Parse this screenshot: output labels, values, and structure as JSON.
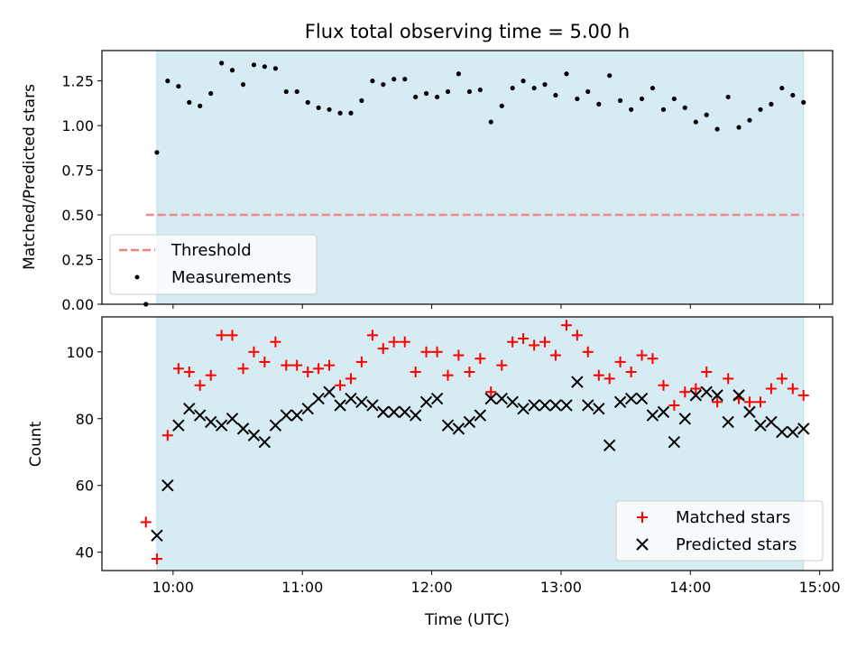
{
  "chart_data": [
    {
      "type": "scatter",
      "title": "Flux total observing time = 5.00 h",
      "xlabel": "",
      "ylabel": "Matched/Predicted stars",
      "ylim": [
        0,
        1.42
      ],
      "x_axis": "time (hours, UTC)",
      "xlim": [
        9.45,
        15.1
      ],
      "yticks": [
        "0.00",
        "0.25",
        "0.50",
        "0.75",
        "1.00",
        "1.25"
      ],
      "shaded_region": [
        9.875,
        14.875
      ],
      "legend": {
        "placement": "lower-left",
        "entries": [
          "Threshold",
          "Measurements"
        ]
      },
      "series": [
        {
          "name": "Threshold",
          "kind": "dashed-line",
          "color": "#f08080",
          "x": [
            9.79,
            14.875
          ],
          "y": [
            0.5,
            0.5
          ]
        },
        {
          "name": "Measurements",
          "kind": "dot",
          "color": "#000000",
          "x": [
            9.79,
            9.875,
            9.958,
            10.042,
            10.125,
            10.208,
            10.292,
            10.375,
            10.458,
            10.542,
            10.625,
            10.708,
            10.792,
            10.875,
            10.958,
            11.042,
            11.125,
            11.208,
            11.292,
            11.375,
            11.458,
            11.542,
            11.625,
            11.708,
            11.792,
            11.875,
            11.958,
            12.042,
            12.125,
            12.208,
            12.292,
            12.375,
            12.458,
            12.542,
            12.625,
            12.708,
            12.792,
            12.875,
            12.958,
            13.042,
            13.125,
            13.208,
            13.292,
            13.375,
            13.458,
            13.542,
            13.625,
            13.708,
            13.792,
            13.875,
            13.958,
            14.042,
            14.125,
            14.208,
            14.292,
            14.375,
            14.458,
            14.542,
            14.625,
            14.708,
            14.792,
            14.875
          ],
          "y": [
            0.0,
            0.85,
            1.25,
            1.22,
            1.13,
            1.11,
            1.18,
            1.35,
            1.31,
            1.23,
            1.34,
            1.33,
            1.32,
            1.19,
            1.19,
            1.13,
            1.1,
            1.09,
            1.07,
            1.07,
            1.14,
            1.25,
            1.23,
            1.26,
            1.26,
            1.16,
            1.18,
            1.16,
            1.19,
            1.29,
            1.19,
            1.2,
            1.02,
            1.11,
            1.21,
            1.25,
            1.21,
            1.23,
            1.17,
            1.29,
            1.15,
            1.19,
            1.12,
            1.28,
            1.14,
            1.09,
            1.15,
            1.21,
            1.09,
            1.15,
            1.1,
            1.02,
            1.06,
            0.98,
            1.16,
            0.99,
            1.03,
            1.09,
            1.12,
            1.21,
            1.17,
            1.13
          ]
        }
      ]
    },
    {
      "type": "scatter",
      "title": "",
      "xlabel": "Time (UTC)",
      "ylabel": "Count",
      "ylim": [
        34.5,
        110.5
      ],
      "xlim": [
        9.45,
        15.1
      ],
      "yticks": [
        "40",
        "60",
        "80",
        "100"
      ],
      "xticks": [
        "10:00",
        "11:00",
        "12:00",
        "13:00",
        "14:00",
        "15:00"
      ],
      "shaded_region": [
        9.875,
        14.875
      ],
      "legend": {
        "placement": "lower-right",
        "entries": [
          "Matched stars",
          "Predicted stars"
        ]
      },
      "series": [
        {
          "name": "Matched stars",
          "kind": "plus",
          "color": "#ff0000",
          "x": [
            9.79,
            9.875,
            9.958,
            10.042,
            10.125,
            10.208,
            10.292,
            10.375,
            10.458,
            10.542,
            10.625,
            10.708,
            10.792,
            10.875,
            10.958,
            11.042,
            11.125,
            11.208,
            11.292,
            11.375,
            11.458,
            11.542,
            11.625,
            11.708,
            11.792,
            11.875,
            11.958,
            12.042,
            12.125,
            12.208,
            12.292,
            12.375,
            12.458,
            12.542,
            12.625,
            12.708,
            12.792,
            12.875,
            12.958,
            13.042,
            13.125,
            13.208,
            13.292,
            13.375,
            13.458,
            13.542,
            13.625,
            13.708,
            13.792,
            13.875,
            13.958,
            14.042,
            14.125,
            14.208,
            14.292,
            14.375,
            14.458,
            14.542,
            14.625,
            14.708,
            14.792,
            14.875
          ],
          "y": [
            49,
            38,
            75,
            95,
            94,
            90,
            93,
            105,
            105,
            95,
            100,
            97,
            103,
            96,
            96,
            94,
            95,
            96,
            90,
            92,
            97,
            105,
            101,
            103,
            103,
            94,
            100,
            100,
            93,
            99,
            94,
            98,
            88,
            96,
            103,
            104,
            102,
            103,
            99,
            108,
            105,
            100,
            93,
            92,
            97,
            94,
            99,
            98,
            90,
            84,
            88,
            89,
            94,
            85,
            92,
            86,
            85,
            85,
            89,
            92,
            89,
            87
          ]
        },
        {
          "name": "Predicted stars",
          "kind": "x",
          "color": "#000000",
          "x": [
            9.875,
            9.958,
            10.042,
            10.125,
            10.208,
            10.292,
            10.375,
            10.458,
            10.542,
            10.625,
            10.708,
            10.792,
            10.875,
            10.958,
            11.042,
            11.125,
            11.208,
            11.292,
            11.375,
            11.458,
            11.542,
            11.625,
            11.708,
            11.792,
            11.875,
            11.958,
            12.042,
            12.125,
            12.208,
            12.292,
            12.375,
            12.458,
            12.542,
            12.625,
            12.708,
            12.792,
            12.875,
            12.958,
            13.042,
            13.125,
            13.208,
            13.292,
            13.375,
            13.458,
            13.542,
            13.625,
            13.708,
            13.792,
            13.875,
            13.958,
            14.042,
            14.125,
            14.208,
            14.292,
            14.375,
            14.458,
            14.542,
            14.625,
            14.708,
            14.792,
            14.875
          ],
          "y": [
            45,
            60,
            78,
            83,
            81,
            79,
            78,
            80,
            77,
            75,
            73,
            78,
            81,
            81,
            83,
            86,
            88,
            84,
            86,
            85,
            84,
            82,
            82,
            82,
            81,
            85,
            86,
            78,
            77,
            79,
            81,
            86,
            86,
            85,
            83,
            84,
            84,
            84,
            84,
            91,
            84,
            83,
            72,
            85,
            86,
            86,
            81,
            82,
            73,
            80,
            87,
            88,
            87,
            79,
            87,
            82,
            78,
            79,
            76,
            76,
            77
          ]
        }
      ]
    }
  ]
}
